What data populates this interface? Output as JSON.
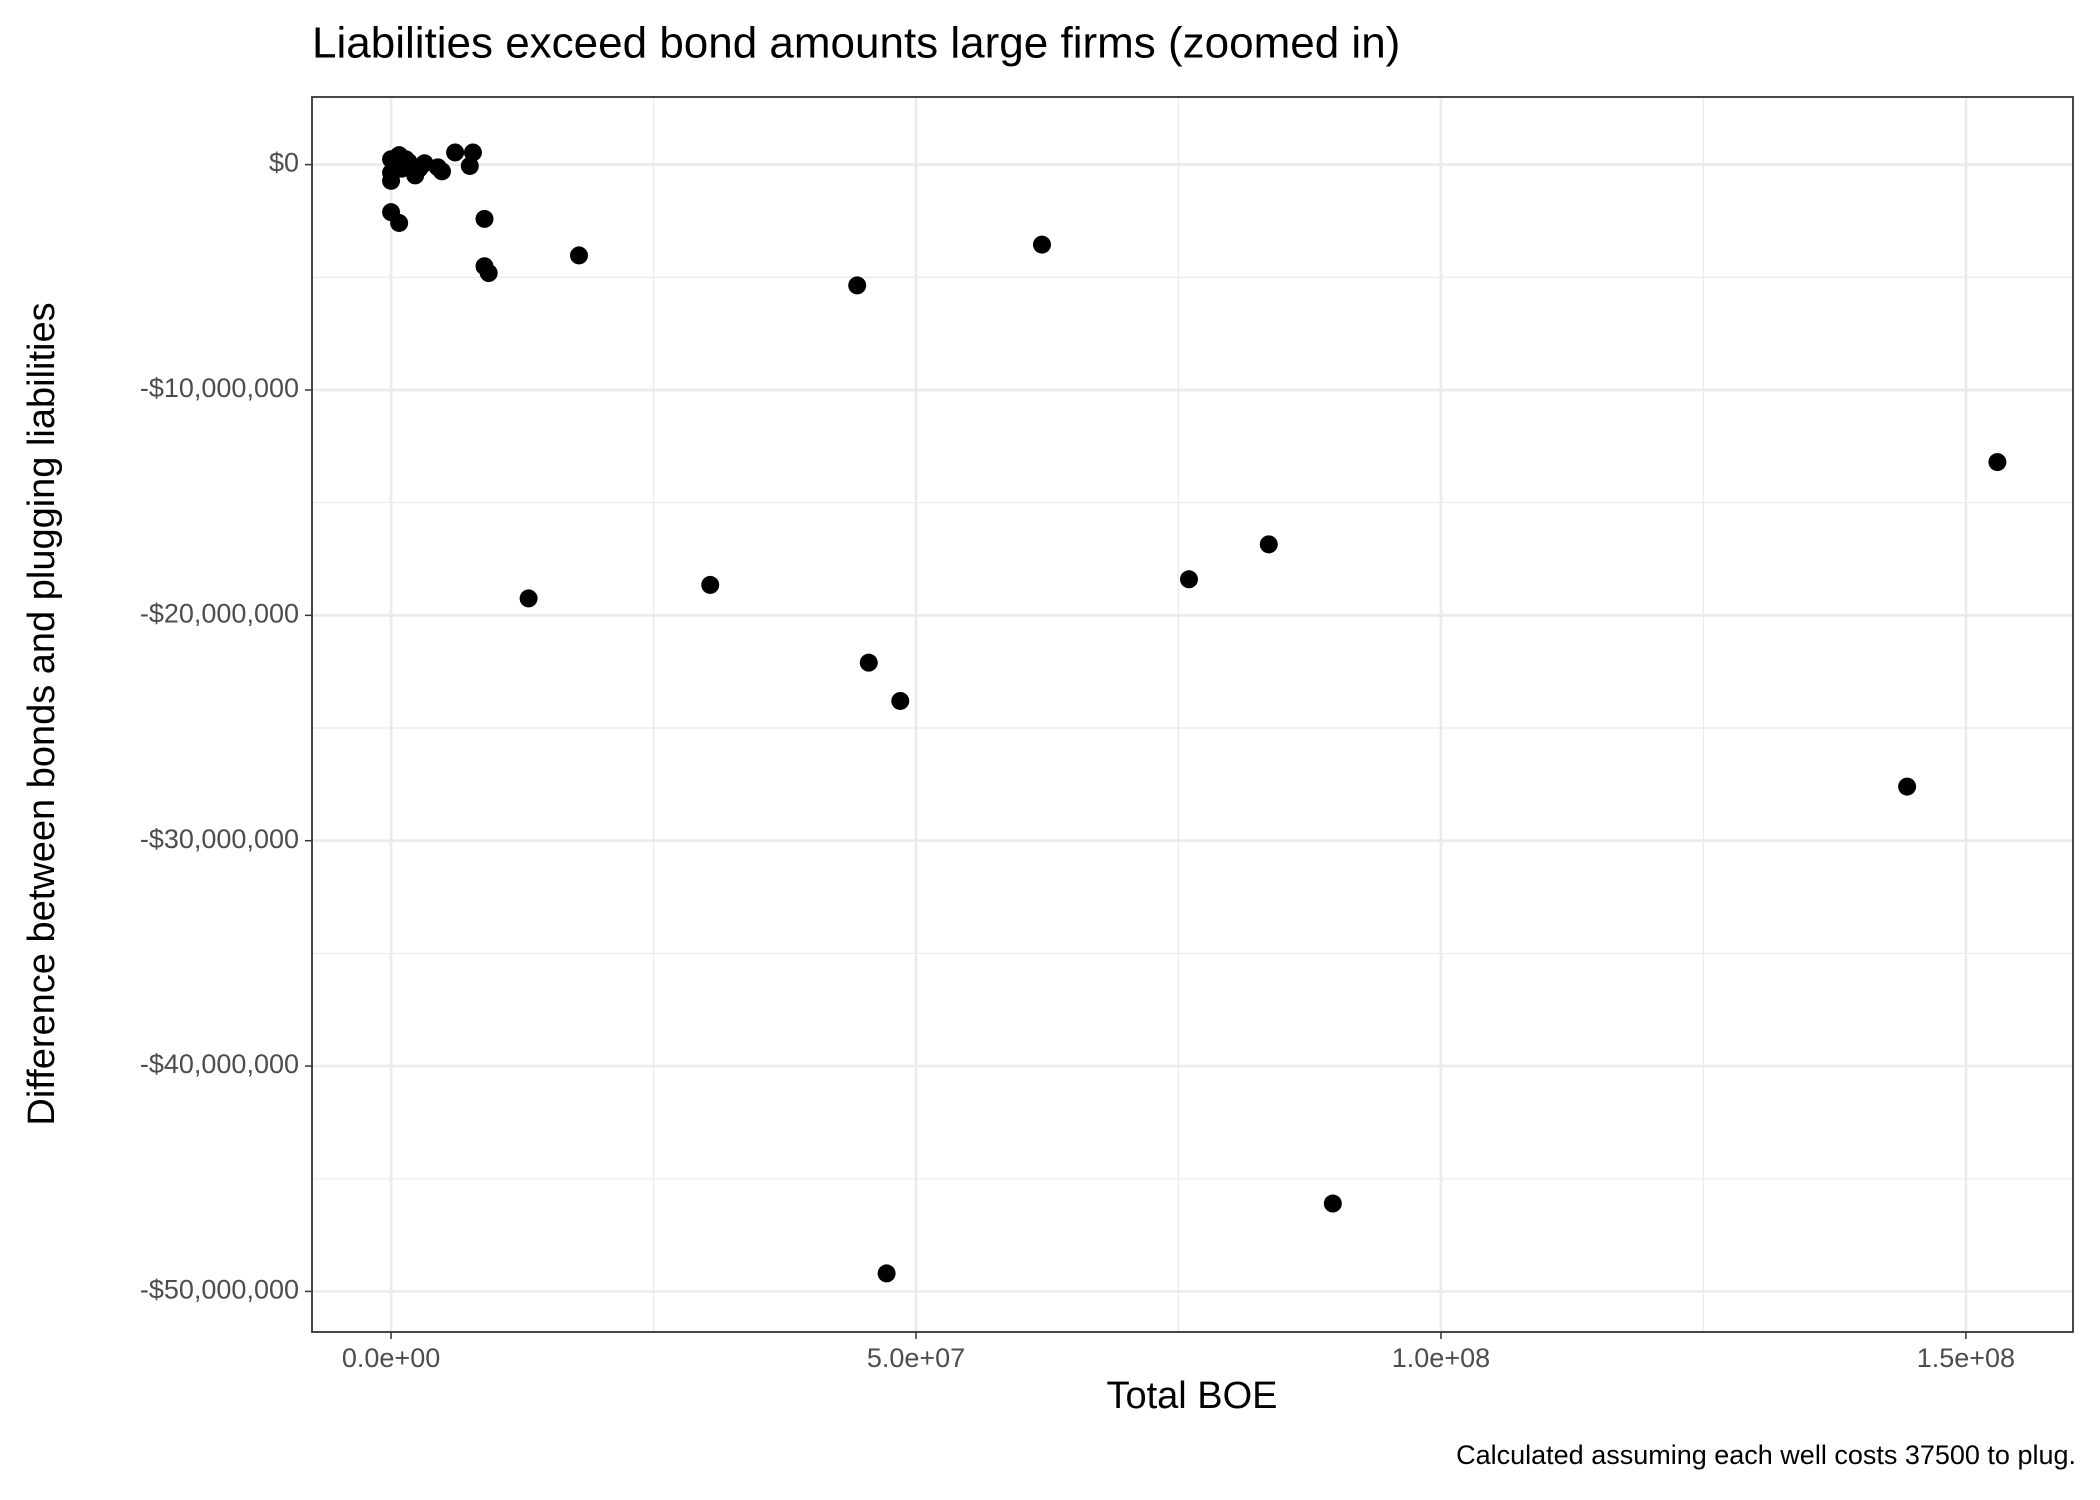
{
  "chart_data": {
    "type": "scatter",
    "title": "Liabilities exceed bond amounts large firms (zoomed in)",
    "x_label": "Total BOE",
    "y_label": "Difference between bonds and plugging liabilities",
    "caption": "Calculated assuming each well costs 37500 to plug.",
    "color": "#000000",
    "grid": true,
    "xlim": [
      -7530000,
      160200000
    ],
    "ylim": [
      -51800000,
      3000000
    ],
    "xticks": [
      {
        "value": 0,
        "label": "0.0e+00"
      },
      {
        "value": 50000000,
        "label": "5.0e+07"
      },
      {
        "value": 100000000,
        "label": "1.0e+08"
      },
      {
        "value": 150000000,
        "label": "1.5e+08"
      }
    ],
    "yticks": [
      {
        "value": 0,
        "label": "$0"
      },
      {
        "value": -10000000,
        "label": "-$10,000,000"
      },
      {
        "value": -20000000,
        "label": "-$20,000,000"
      },
      {
        "value": -30000000,
        "label": "-$30,000,000"
      },
      {
        "value": -40000000,
        "label": "-$40,000,000"
      },
      {
        "value": -50000000,
        "label": "-$50,000,000"
      }
    ],
    "x_minor_ticks": [
      25000000,
      75000000,
      125000000
    ],
    "y_minor_ticks": [
      -5000000,
      -15000000,
      -25000000,
      -35000000,
      -45000000
    ],
    "x": [
      6100000,
      7800000,
      7500000,
      8900000,
      8900000,
      9300000,
      17900000,
      0,
      770000,
      44400000,
      62000000,
      13100000,
      30400000,
      45500000,
      48500000,
      76000000,
      83600000,
      153000000,
      144400000,
      89700000,
      47200000,
      770000,
      0,
      0,
      0,
      1000000,
      1660000,
      2300000,
      2680000,
      3190000,
      4460000,
      4850000,
      510000,
      1400000
    ],
    "y": [
      540000,
      540000,
      -60000,
      -2410000,
      -4510000,
      -4810000,
      -4030000,
      -2110000,
      -2590000,
      -5360000,
      -3550000,
      -19250000,
      -18650000,
      -22100000,
      -23800000,
      -18400000,
      -16850000,
      -13200000,
      -27600000,
      -46100000,
      -49200000,
      420000,
      240000,
      -360000,
      -720000,
      -180000,
      120000,
      -480000,
      -180000,
      60000,
      -120000,
      -300000,
      0,
      240000
    ]
  }
}
